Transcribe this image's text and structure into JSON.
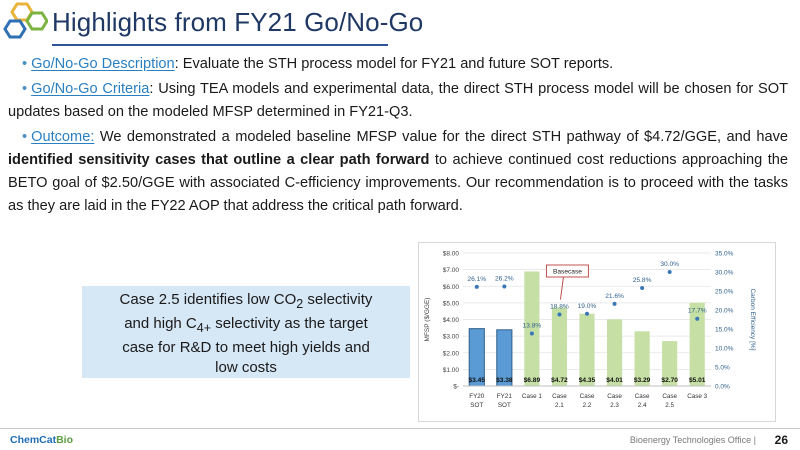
{
  "slide": {
    "title": "Highlights from FY21 Go/No-Go",
    "bullets": [
      {
        "label": "Go/No-Go Description",
        "text": ": Evaluate the STH process model for FY21 and future SOT reports."
      },
      {
        "label": "Go/No-Go Criteria",
        "text": ": Using TEA models and experimental data, the direct STH process model will be chosen for SOT updates based on the modeled MFSP determined in FY21-Q3."
      },
      {
        "label": "Outcome:",
        "text_before": " We demonstrated a modeled baseline MFSP value for the direct STH pathway of $4.72/GGE, and have ",
        "text_bold": "identified sensitivity cases that outline a clear path forward",
        "text_after": " to achieve continued cost reductions approaching the BETO goal of $2.50/GGE with associated C-efficiency improvements. Our recommendation is to proceed with the tasks as they are laid in the FY22 AOP that address the critical path forward."
      }
    ],
    "callout": {
      "line1": "Case 2.5 identifies low CO",
      "sub1": "2",
      "line1b": " selectivity",
      "line2": "and high C",
      "sub2": "4+",
      "line2b": " selectivity as the target",
      "line3": "case for R&D to meet high yields and",
      "line4": "low costs"
    },
    "footer": {
      "logo_a": "ChemCat",
      "logo_b": "Bio",
      "office": "Bioenergy Technologies Office  |",
      "page": "26"
    },
    "colors": {
      "title": "#1f3864",
      "accent": "#2a7fc1",
      "bar_sot": "#5b9bd5",
      "bar_sot_edge": "#2f5f8a",
      "bar_case": "#c5dfa4",
      "marker": "#3a77b5"
    }
  },
  "chart_data": {
    "type": "bar",
    "categories": [
      "FY20\nSOT",
      "FY21\nSOT",
      "Case 1",
      "Case\n2.1",
      "Case\n2.2",
      "Case\n2.3",
      "Case\n2.4",
      "Case\n2.5",
      "Case 3"
    ],
    "series": [
      {
        "values": [
          3.45,
          3.38,
          6.89,
          4.72,
          4.35,
          4.01,
          3.29,
          2.7,
          5.01
        ],
        "labels": [
          "$3.45",
          "$3.38",
          "$6.89",
          "$4.72",
          "$4.35",
          "$4.01",
          "$3.29",
          "$2.70",
          "$5.01"
        ],
        "axis": "left"
      },
      {
        "type": "scatter",
        "values": [
          26.1,
          26.2,
          13.8,
          18.8,
          19.0,
          21.6,
          25.8,
          30.0,
          17.7
        ],
        "labels": [
          "26.1%",
          "26.2%",
          "13.8%",
          "18.8%",
          "19.0%",
          "21.6%",
          "25.8%",
          "30.0%",
          "17.7%"
        ],
        "axis": "right"
      }
    ],
    "ylabel": "MFSP ($/GGE)",
    "y2label": "Carbon Efficiency [%]",
    "ylim": [
      0,
      8
    ],
    "y2lim": [
      0,
      35
    ],
    "yticks": [
      "$-",
      "$1.00",
      "$2.00",
      "$3.00",
      "$4.00",
      "$5.00",
      "$6.00",
      "$7.00",
      "$8.00"
    ],
    "y2ticks": [
      "0.0%",
      "5.0%",
      "10.0%",
      "15.0%",
      "20.0%",
      "25.0%",
      "30.0%",
      "35.0%"
    ],
    "annotation": {
      "text": "Basecase",
      "category_index": 3
    },
    "grid": true
  }
}
